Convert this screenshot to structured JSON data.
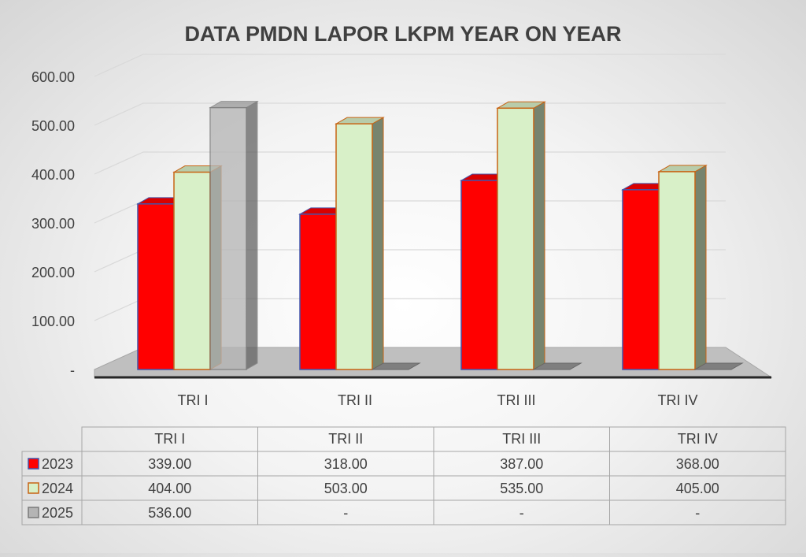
{
  "chart_data": {
    "type": "bar",
    "title": "DATA PMDN LAPOR LKPM YEAR ON YEAR",
    "categories": [
      "TRI I",
      "TRI II",
      "TRI III",
      "TRI IV"
    ],
    "yticks": [
      "-",
      "100.00",
      "200.00",
      "300.00",
      "400.00",
      "500.00",
      "600.00"
    ],
    "ylim": [
      0,
      600
    ],
    "grid": true,
    "legend": "data-table",
    "series": [
      {
        "name": "2023",
        "values": [
          339,
          318,
          387,
          368
        ],
        "labels": [
          "339.00",
          "318.00",
          "387.00",
          "368.00"
        ],
        "color": "#ff0000",
        "edge": "#4455aa"
      },
      {
        "name": "2024",
        "values": [
          404,
          503,
          535,
          405
        ],
        "labels": [
          "404.00",
          "503.00",
          "535.00",
          "405.00"
        ],
        "color": "#d8f0c8",
        "edge": "#c86414"
      },
      {
        "name": "2025",
        "values": [
          536,
          null,
          null,
          null
        ],
        "labels": [
          "536.00",
          "-",
          "-",
          "-"
        ],
        "color": "#b4b4b4",
        "edge": "#7a7a7a"
      }
    ]
  }
}
